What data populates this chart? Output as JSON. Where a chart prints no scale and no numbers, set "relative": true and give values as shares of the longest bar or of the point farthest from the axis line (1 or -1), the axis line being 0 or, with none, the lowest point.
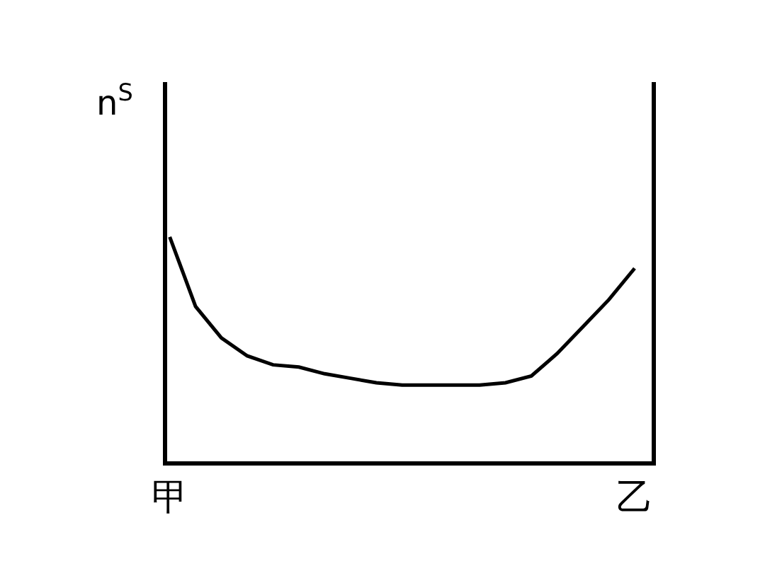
{
  "chart_data": {
    "type": "line",
    "relative": true,
    "ylabel": "n$^{S}$",
    "categories": [
      "甲",
      null,
      null,
      null,
      null,
      null,
      null,
      null,
      null,
      null,
      null,
      null,
      null,
      null,
      null,
      null,
      null,
      null,
      "乙"
    ],
    "series": [
      {
        "color": "#000000",
        "values": [
          1.0,
          0.69,
          0.55,
          0.47,
          0.43,
          0.42,
          0.39,
          0.37,
          0.35,
          0.34,
          0.34,
          0.34,
          0.34,
          0.35,
          0.38,
          0.48,
          0.6,
          0.72,
          0.86
        ]
      }
    ],
    "marker": "none",
    "line_style": "solid"
  }
}
